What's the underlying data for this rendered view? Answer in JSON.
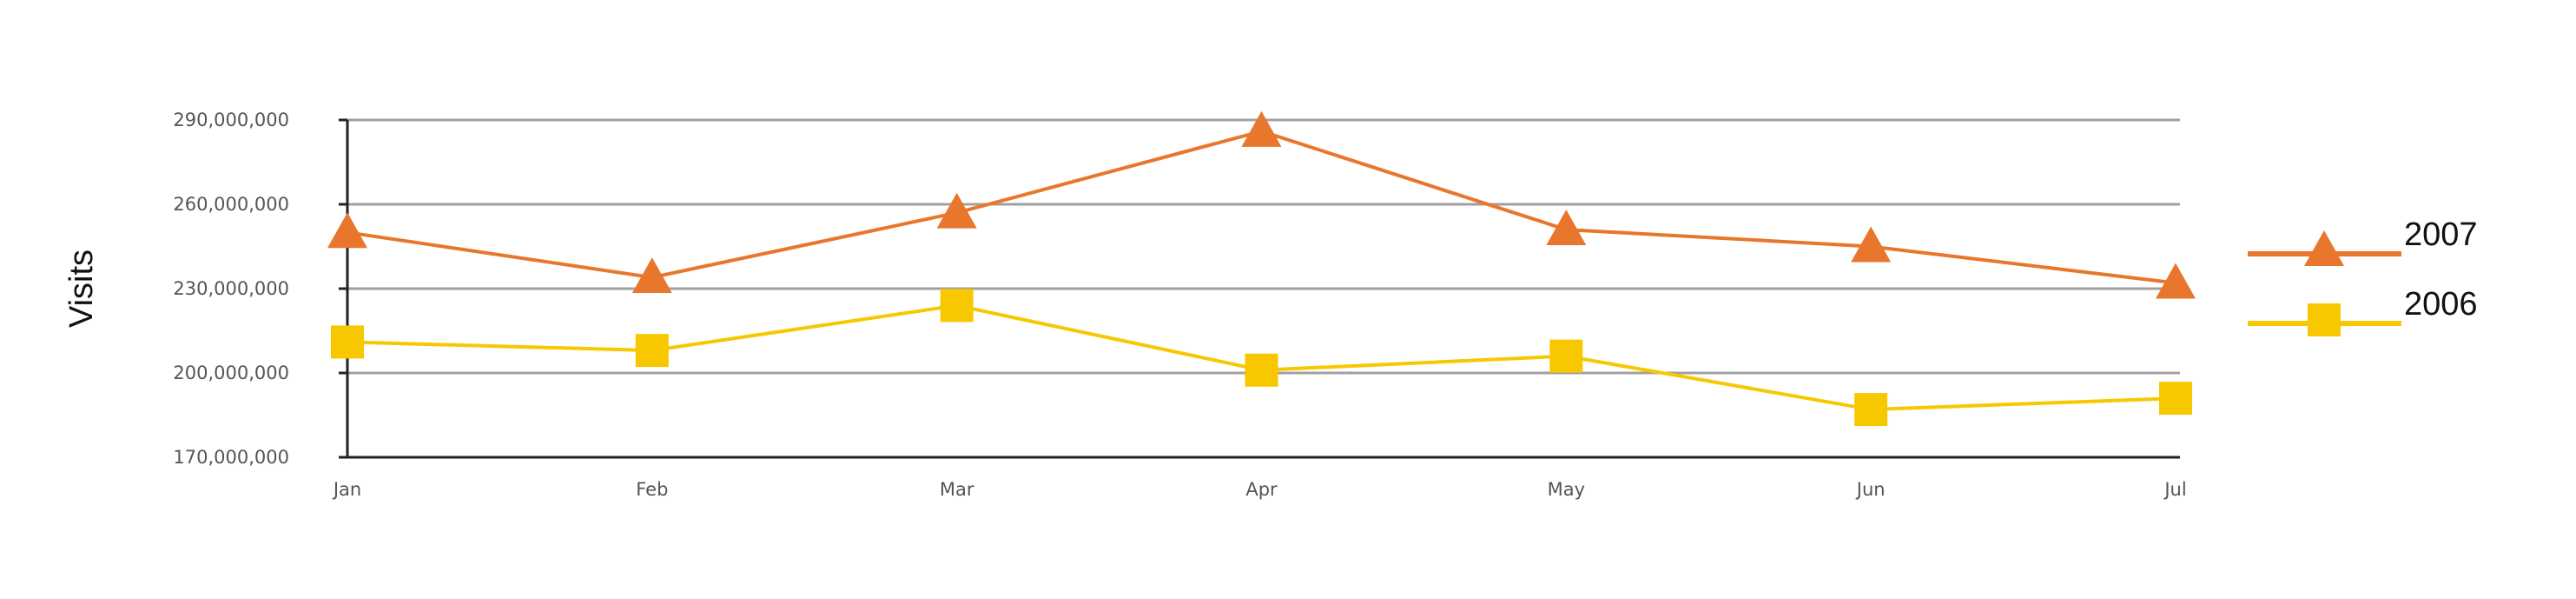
{
  "chart_data": {
    "type": "line",
    "title": "",
    "xlabel": "",
    "ylabel": "Visits",
    "categories": [
      "Jan",
      "Feb",
      "Mar",
      "Apr",
      "May",
      "Jun",
      "Jul"
    ],
    "ylim": [
      170000000,
      290000000
    ],
    "yticks": [
      170000000,
      200000000,
      230000000,
      260000000,
      290000000
    ],
    "ytick_labels": [
      "170,000,000",
      "200,000,000",
      "230,000,000",
      "260,000,000",
      "290,000,000"
    ],
    "grid": true,
    "legend_position": "right",
    "series": [
      {
        "name": "2007",
        "marker": "triangle",
        "color": "#e8762c",
        "values": [
          250000000,
          234000000,
          257000000,
          286000000,
          251000000,
          245000000,
          232000000
        ]
      },
      {
        "name": "2006",
        "marker": "square",
        "color": "#f7c800",
        "values": [
          211000000,
          208000000,
          224000000,
          201000000,
          206000000,
          187000000,
          191000000
        ]
      }
    ]
  }
}
